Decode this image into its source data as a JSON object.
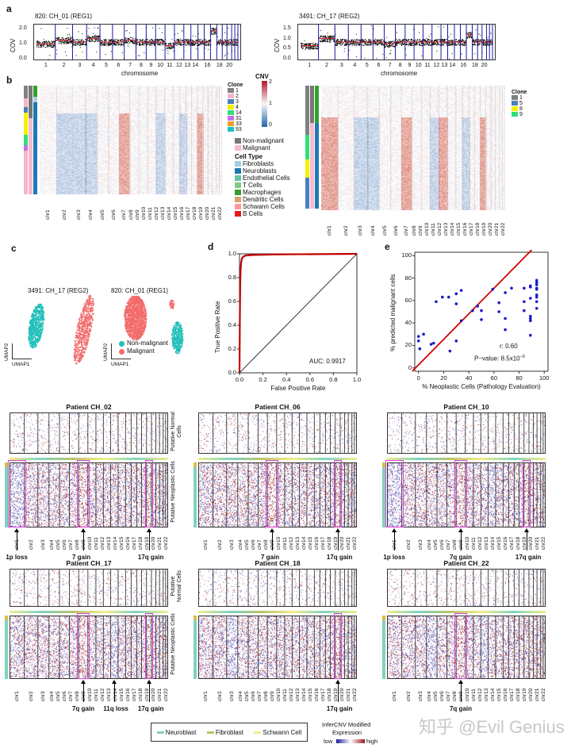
{
  "panel_labels": {
    "a": "a",
    "b": "b",
    "c": "c",
    "d": "d",
    "e": "e"
  },
  "panel_a": {
    "plots": [
      {
        "title": "820: CH_01 (REG1)",
        "ylabel": "COV",
        "yticks": [
          "0.0",
          "1.0",
          "2.0"
        ],
        "xlabel": "chromosome"
      },
      {
        "title": "3491: CH_17 (REG2)",
        "ylabel": "COV",
        "yticks": [
          "0.0",
          "0.5",
          "1.0",
          "1.5"
        ],
        "xlabel": "chromosome"
      }
    ],
    "xticks": [
      "1",
      "2",
      "3",
      "4",
      "5",
      "6",
      "7",
      "8",
      "9",
      "10",
      "11",
      "12",
      "13",
      "14",
      "16",
      "18",
      "20"
    ],
    "colors": {
      "points": "#000000",
      "segments": "#d62728",
      "boundaries": "#1a1aa6"
    }
  },
  "panel_b": {
    "chromosomes": [
      "chr1",
      "chr2",
      "chr3",
      "chr4",
      "chr5",
      "chr6",
      "chr7",
      "chr8",
      "chr9",
      "chr10",
      "chr11",
      "chr12",
      "chr13",
      "chr14",
      "chr15",
      "chr16",
      "chr17",
      "chr18",
      "chr19",
      "chr20",
      "chr21",
      "chr22"
    ],
    "cnv_legend": {
      "title": "CNV",
      "ticks": [
        "2",
        "1",
        "0"
      ],
      "colors": {
        "high": "#b2182b",
        "mid": "#f7f7f7",
        "low": "#2166ac"
      }
    },
    "clone_legend_left": {
      "title": "Clone",
      "items": [
        {
          "label": "1",
          "color": "#808080"
        },
        {
          "label": "2",
          "color": "#f4b6c8"
        },
        {
          "label": "3",
          "color": "#4a7fc1"
        },
        {
          "label": "4",
          "color": "#f5f000"
        },
        {
          "label": "14",
          "color": "#2ee07a"
        },
        {
          "label": "31",
          "color": "#c86ee6"
        },
        {
          "label": "33",
          "color": "#f0a020"
        },
        {
          "label": "93",
          "color": "#20c0c0"
        }
      ]
    },
    "malignancy_legend": [
      {
        "label": "Non-malignant",
        "color": "#777777"
      },
      {
        "label": "Malignant",
        "color": "#f7b9cc"
      }
    ],
    "cell_type_legend": {
      "title": "Cell Type",
      "items": [
        {
          "label": "Fibroblasts",
          "color": "#a6cee3"
        },
        {
          "label": "Neuroblasts",
          "color": "#1f78b4"
        },
        {
          "label": "Endothelial Cells",
          "color": "#66c2a5"
        },
        {
          "label": "T Cells",
          "color": "#7fc97f"
        },
        {
          "label": "Macrophages",
          "color": "#33a02c"
        },
        {
          "label": "Dendritic Cells",
          "color": "#d9a070"
        },
        {
          "label": "Schwann Cells",
          "color": "#fb9a99"
        },
        {
          "label": "B Cells",
          "color": "#e31a1c"
        }
      ]
    },
    "clone_legend_right": {
      "title": "Clone",
      "items": [
        {
          "label": "1",
          "color": "#808080"
        },
        {
          "label": "5",
          "color": "#4a7fc1"
        },
        {
          "label": "8",
          "color": "#f5f000"
        },
        {
          "label": "9",
          "color": "#2ee07a"
        }
      ]
    }
  },
  "panel_c": {
    "plots": [
      {
        "title": "3491: CH_17 (REG2)"
      },
      {
        "title": "820: CH_01 (REG1)"
      }
    ],
    "xlabel": "UMAP1",
    "ylabel": "UMAP2",
    "legend": [
      {
        "label": "Non-malignant",
        "color": "#1fbfb8"
      },
      {
        "label": "Malignant",
        "color": "#f26b6b"
      }
    ]
  },
  "chart_data": [
    {
      "type": "line",
      "title": "",
      "xlabel": "False Positive Rate",
      "ylabel": "True Positive Rate",
      "xlim": [
        0,
        1
      ],
      "ylim": [
        0,
        1
      ],
      "xticks": [
        "0.0",
        "0.2",
        "0.4",
        "0.6",
        "0.8",
        "1.0"
      ],
      "yticks": [
        "0.0",
        "0.2",
        "0.4",
        "0.6",
        "0.8",
        "1.0"
      ],
      "series": [
        {
          "color": "#c00000",
          "x": [
            0,
            0.003,
            0.006,
            0.01,
            0.015,
            0.02,
            0.03,
            0.05,
            0.1,
            0.3,
            1
          ],
          "y": [
            0,
            0.45,
            0.75,
            0.88,
            0.93,
            0.96,
            0.975,
            0.985,
            0.99,
            0.995,
            1
          ]
        },
        {
          "color": "#000000",
          "x": [
            0,
            1
          ],
          "y": [
            0,
            1
          ]
        }
      ],
      "annotation": "AUC: 0.9917",
      "grid": false
    },
    {
      "type": "scatter",
      "title": "",
      "xlabel": "% Neoplastic Cells (Pathology Evaluation)",
      "ylabel": "% predicted malignant cells",
      "xlim": [
        -3,
        103
      ],
      "ylim": [
        -3,
        103
      ],
      "xticks": [
        "0",
        "20",
        "40",
        "60",
        "80",
        "100"
      ],
      "yticks": [
        "0",
        "20",
        "40",
        "60",
        "80",
        "100"
      ],
      "point_color": "#1a1acc",
      "x": [
        0,
        0,
        1,
        4,
        10,
        12,
        14,
        19,
        24,
        25,
        30,
        30,
        30,
        34,
        34,
        43,
        47,
        50,
        50,
        59,
        64,
        64,
        69,
        69,
        69,
        74,
        84,
        84,
        84,
        89,
        89,
        89,
        89,
        89,
        89,
        89,
        94,
        94,
        94,
        94,
        94,
        94,
        94,
        94,
        94
      ],
      "y": [
        28,
        24,
        17,
        30,
        21,
        22,
        59,
        63,
        63,
        15,
        66,
        57,
        24,
        69,
        42,
        51,
        55,
        51,
        43,
        70,
        58,
        50,
        67,
        44,
        34,
        71,
        71,
        59,
        51,
        73,
        72,
        62,
        46,
        44,
        42,
        29,
        78,
        76,
        74,
        71,
        70,
        65,
        63,
        59,
        53
      ],
      "fit_line": {
        "color": "#d00000",
        "x": [
          -5,
          90
        ],
        "y": [
          -3,
          105
        ]
      },
      "annotations": {
        "r": "r: 0.60",
        "p_prefix": "P−value: 8.5x10",
        "p_exp": "−6"
      },
      "grid": false
    }
  ],
  "patients": [
    {
      "title": "Patient CH_02",
      "annotations": [
        "1p loss",
        "7 gain",
        "17q gain"
      ],
      "side_normal": "Putative Normal Cells",
      "side_neo": "Putative Neoplastic Cells"
    },
    {
      "title": "Patient CH_06",
      "annotations": [
        "7 gain",
        "17q gain"
      ]
    },
    {
      "title": "Patient CH_10",
      "annotations": [
        "1p loss",
        "7q gain",
        "17q gain"
      ]
    },
    {
      "title": "Patient CH_17",
      "annotations": [
        "7q gain",
        "11q loss",
        "17q gain"
      ],
      "side_normal": "Putative Normal Cells",
      "side_neo": "Putative Neoplastic Cells"
    },
    {
      "title": "Patient CH_18",
      "annotations": [
        "17q gain"
      ]
    },
    {
      "title": "Patient CH_22",
      "annotations": [
        "7q gain"
      ]
    }
  ],
  "bottom_legend": {
    "cell_types": [
      {
        "label": "Neuroblast",
        "color": "#7fd3c0"
      },
      {
        "label": "Fibroblast",
        "color": "#b8c46a"
      },
      {
        "label": "Schwann Cell",
        "color": "#f2ee88"
      }
    ],
    "expr_title_1": "InferCNV Modified",
    "expr_title_2": "Expression",
    "low": "low",
    "high": "high"
  },
  "watermark": "知乎 @Evil Genius"
}
